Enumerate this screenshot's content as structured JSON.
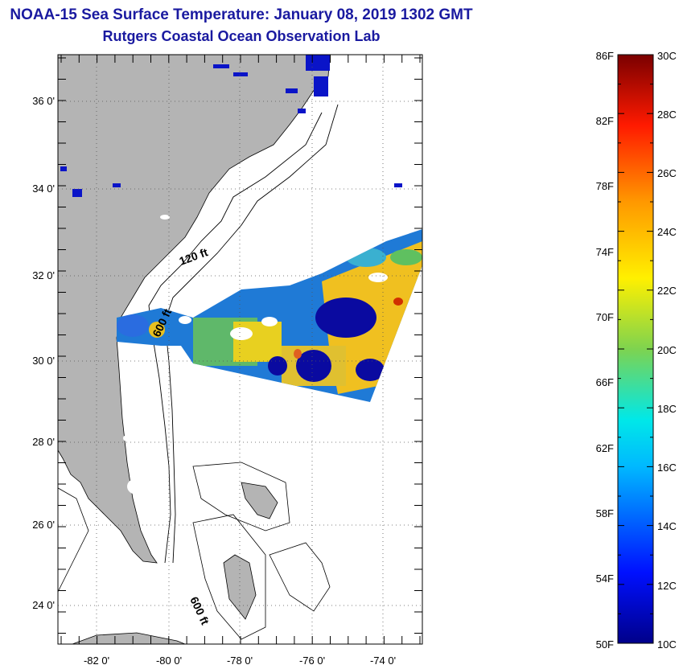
{
  "title": "NOAA-15 Sea Surface Temperature:  January 08, 2019 1302 GMT",
  "subtitle": "Rutgers Coastal Ocean Observation Lab",
  "map": {
    "lat_labels": [
      "36 0'",
      "34 0'",
      "32 0'",
      "30 0'",
      "28 0'",
      "26 0'",
      "24 0'"
    ],
    "lon_labels": [
      "-82 0'",
      "-80 0'",
      "-78 0'",
      "-76 0'",
      "-74 0'"
    ],
    "contour_labels": [
      "120 ft",
      "600 ft",
      "600 ft"
    ],
    "land_color": "#b4b4b4",
    "ocean_color": "#ffffff"
  },
  "colorbar": {
    "f_labels": [
      "86F",
      "82F",
      "78F",
      "74F",
      "70F",
      "66F",
      "62F",
      "58F",
      "54F",
      "50F"
    ],
    "c_labels": [
      "30C",
      "28C",
      "26C",
      "24C",
      "22C",
      "20C",
      "18C",
      "16C",
      "14C",
      "12C",
      "10C"
    ],
    "min_color": "#00008a",
    "max_color": "#7a0000"
  }
}
